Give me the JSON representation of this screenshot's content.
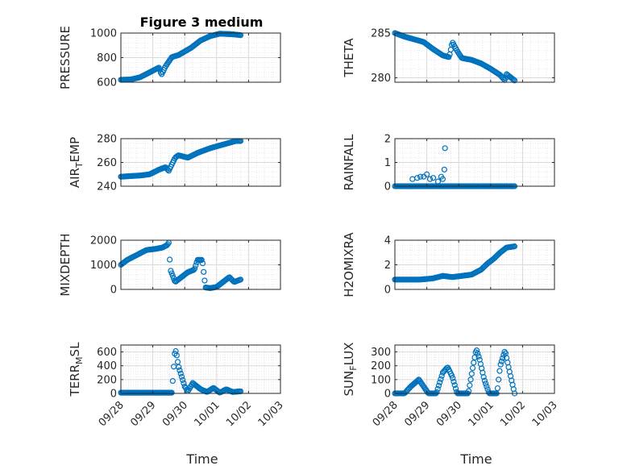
{
  "figure_title": "Figure 3 medium",
  "colors": {
    "marker": "#0072BD",
    "axes": "#262626",
    "grid": "#d9d9d9",
    "background": "#ffffff"
  },
  "chart_data": [
    {
      "type": "scatter",
      "marker": "circle-open",
      "grid": true,
      "title": "Figure 3 medium",
      "ylabel": "PRESSURE",
      "xlabel": "",
      "xlim": [
        "09/28",
        "10/03"
      ],
      "ylim": [
        600,
        1000
      ],
      "yticks": [
        "600",
        "800",
        "1000"
      ],
      "x_ticklabels": [
        "09/28",
        "09/29",
        "09/30",
        "10/01",
        "10/02",
        "10/03"
      ],
      "x_ticklabels_shown": false,
      "x_range_days": [
        0,
        3.75
      ],
      "y_keypoints": [
        [
          0,
          620
        ],
        [
          0.3,
          622
        ],
        [
          0.6,
          640
        ],
        [
          0.9,
          680
        ],
        [
          1.2,
          720
        ],
        [
          1.27,
          660
        ],
        [
          1.4,
          730
        ],
        [
          1.6,
          805
        ],
        [
          1.8,
          820
        ],
        [
          2.0,
          850
        ],
        [
          2.2,
          880
        ],
        [
          2.5,
          940
        ],
        [
          2.8,
          975
        ],
        [
          3.1,
          995
        ],
        [
          3.5,
          990
        ],
        [
          3.75,
          983
        ]
      ]
    },
    {
      "type": "scatter",
      "marker": "circle-open",
      "grid": true,
      "title": "",
      "ylabel": "THETA",
      "xlabel": "",
      "xlim": [
        "09/28",
        "10/03"
      ],
      "ylim": [
        279.5,
        285
      ],
      "yticks": [
        "280",
        "285"
      ],
      "x_ticklabels": [
        "09/28",
        "09/29",
        "09/30",
        "10/01",
        "10/02",
        "10/03"
      ],
      "x_ticklabels_shown": false,
      "x_range_days": [
        0,
        3.75
      ],
      "y_keypoints": [
        [
          0,
          285
        ],
        [
          0.3,
          284.6
        ],
        [
          0.6,
          284.3
        ],
        [
          0.9,
          284.0
        ],
        [
          1.2,
          283.2
        ],
        [
          1.5,
          282.5
        ],
        [
          1.7,
          282.3
        ],
        [
          1.8,
          284.0
        ],
        [
          1.95,
          283.0
        ],
        [
          2.1,
          282.2
        ],
        [
          2.4,
          282.0
        ],
        [
          2.7,
          281.6
        ],
        [
          3.0,
          281.0
        ],
        [
          3.3,
          280.3
        ],
        [
          3.45,
          279.7
        ],
        [
          3.5,
          280.4
        ],
        [
          3.75,
          279.7
        ]
      ]
    },
    {
      "type": "scatter",
      "marker": "circle-open",
      "grid": true,
      "title": "",
      "ylabel": "AIR_TEMP",
      "ylabel_subscript": "T",
      "xlabel": "",
      "xlim": [
        "09/28",
        "10/03"
      ],
      "ylim": [
        240,
        280
      ],
      "yticks": [
        "240",
        "260",
        "280"
      ],
      "x_ticklabels": [
        "09/28",
        "09/29",
        "09/30",
        "10/01",
        "10/02",
        "10/03"
      ],
      "x_ticklabels_shown": false,
      "x_range_days": [
        0,
        3.75
      ],
      "y_keypoints": [
        [
          0,
          248
        ],
        [
          0.3,
          248.5
        ],
        [
          0.6,
          249
        ],
        [
          0.9,
          250
        ],
        [
          1.2,
          254
        ],
        [
          1.4,
          256
        ],
        [
          1.5,
          253
        ],
        [
          1.7,
          264
        ],
        [
          1.8,
          266
        ],
        [
          2.1,
          264
        ],
        [
          2.4,
          268
        ],
        [
          2.8,
          272
        ],
        [
          3.2,
          275
        ],
        [
          3.6,
          278
        ],
        [
          3.75,
          278
        ]
      ]
    },
    {
      "type": "scatter",
      "marker": "circle-open",
      "grid": true,
      "title": "",
      "ylabel": "RAINFALL",
      "xlabel": "",
      "xlim": [
        "09/28",
        "10/03"
      ],
      "ylim": [
        0,
        2
      ],
      "yticks": [
        "0",
        "1",
        "2"
      ],
      "x_ticklabels": [
        "09/28",
        "09/29",
        "09/30",
        "10/01",
        "10/02",
        "10/03"
      ],
      "x_ticklabels_shown": false,
      "x_range_days": [
        0,
        3.75
      ],
      "y_keypoints": [
        [
          0,
          0
        ],
        [
          3.75,
          0
        ]
      ],
      "y_outliers": [
        [
          0.55,
          0.3
        ],
        [
          0.7,
          0.35
        ],
        [
          0.8,
          0.4
        ],
        [
          0.9,
          0.4
        ],
        [
          1.0,
          0.5
        ],
        [
          1.1,
          0.3
        ],
        [
          1.2,
          0.35
        ],
        [
          1.35,
          0.2
        ],
        [
          1.45,
          0.4
        ],
        [
          1.5,
          0.3
        ],
        [
          1.55,
          0.7
        ],
        [
          1.57,
          1.6
        ]
      ]
    },
    {
      "type": "scatter",
      "marker": "circle-open",
      "grid": true,
      "title": "",
      "ylabel": "MIXDEPTH",
      "xlabel": "",
      "xlim": [
        "09/28",
        "10/03"
      ],
      "ylim": [
        0,
        2000
      ],
      "yticks": [
        "0",
        "1000",
        "2000"
      ],
      "x_ticklabels": [
        "09/28",
        "09/29",
        "09/30",
        "10/01",
        "10/02",
        "10/03"
      ],
      "x_ticklabels_shown": false,
      "x_range_days": [
        0,
        3.75
      ],
      "y_keypoints": [
        [
          0,
          1000
        ],
        [
          0.2,
          1200
        ],
        [
          0.5,
          1400
        ],
        [
          0.8,
          1600
        ],
        [
          1.1,
          1650
        ],
        [
          1.3,
          1700
        ],
        [
          1.45,
          1800
        ],
        [
          1.5,
          1900
        ],
        [
          1.55,
          800
        ],
        [
          1.7,
          300
        ],
        [
          1.9,
          500
        ],
        [
          2.1,
          700
        ],
        [
          2.3,
          800
        ],
        [
          2.4,
          1200
        ],
        [
          2.55,
          1200
        ],
        [
          2.65,
          80
        ],
        [
          2.8,
          50
        ],
        [
          3.0,
          100
        ],
        [
          3.2,
          300
        ],
        [
          3.4,
          500
        ],
        [
          3.55,
          300
        ],
        [
          3.75,
          400
        ]
      ]
    },
    {
      "type": "scatter",
      "marker": "circle-open",
      "grid": true,
      "title": "",
      "ylabel": "H2OMIXRA",
      "xlabel": "",
      "xlim": [
        "09/28",
        "10/03"
      ],
      "ylim": [
        0,
        4
      ],
      "yticks": [
        "0",
        "2",
        "4"
      ],
      "x_ticklabels": [
        "09/28",
        "09/29",
        "09/30",
        "10/01",
        "10/02",
        "10/03"
      ],
      "x_ticklabels_shown": false,
      "x_range_days": [
        0,
        3.75
      ],
      "y_keypoints": [
        [
          0,
          0.8
        ],
        [
          0.4,
          0.8
        ],
        [
          0.8,
          0.8
        ],
        [
          1.2,
          0.9
        ],
        [
          1.5,
          1.1
        ],
        [
          1.8,
          1.0
        ],
        [
          2.1,
          1.1
        ],
        [
          2.4,
          1.2
        ],
        [
          2.7,
          1.6
        ],
        [
          2.9,
          2.1
        ],
        [
          3.1,
          2.5
        ],
        [
          3.3,
          3.0
        ],
        [
          3.5,
          3.4
        ],
        [
          3.75,
          3.5
        ]
      ]
    },
    {
      "type": "scatter",
      "marker": "circle-open",
      "grid": true,
      "title": "",
      "ylabel": "TERR_MSL",
      "ylabel_subscript": "M",
      "xlabel": "Time",
      "xlim": [
        "09/28",
        "10/03"
      ],
      "ylim": [
        0,
        700
      ],
      "yticks": [
        "0",
        "200",
        "400",
        "600"
      ],
      "x_ticklabels": [
        "09/28",
        "09/29",
        "09/30",
        "10/01",
        "10/02",
        "10/03"
      ],
      "x_ticklabels_shown": true,
      "x_range_days": [
        0,
        3.75
      ],
      "y_keypoints": [
        [
          0,
          10
        ],
        [
          1.6,
          10
        ],
        [
          1.65,
          350
        ],
        [
          1.7,
          650
        ],
        [
          1.75,
          550
        ],
        [
          1.8,
          400
        ],
        [
          1.9,
          250
        ],
        [
          2.0,
          100
        ],
        [
          2.1,
          30
        ],
        [
          2.25,
          150
        ],
        [
          2.5,
          60
        ],
        [
          2.7,
          20
        ],
        [
          2.9,
          80
        ],
        [
          3.1,
          10
        ],
        [
          3.3,
          60
        ],
        [
          3.5,
          20
        ],
        [
          3.75,
          30
        ]
      ]
    },
    {
      "type": "scatter",
      "marker": "circle-open",
      "grid": true,
      "title": "",
      "ylabel": "SUN_FLUX",
      "ylabel_subscript": "F",
      "xlabel": "Time",
      "xlim": [
        "09/28",
        "10/03"
      ],
      "ylim": [
        0,
        350
      ],
      "yticks": [
        "0",
        "100",
        "200",
        "300"
      ],
      "x_ticklabels": [
        "09/28",
        "09/29",
        "09/30",
        "10/01",
        "10/02",
        "10/03"
      ],
      "x_ticklabels_shown": true,
      "x_range_days": [
        0,
        3.75
      ],
      "y_keypoints": [
        [
          0,
          0
        ],
        [
          0.3,
          0
        ],
        [
          0.5,
          50
        ],
        [
          0.75,
          100
        ],
        [
          0.9,
          50
        ],
        [
          1.05,
          0
        ],
        [
          1.3,
          0
        ],
        [
          1.5,
          150
        ],
        [
          1.65,
          190
        ],
        [
          1.8,
          120
        ],
        [
          1.95,
          0
        ],
        [
          2.3,
          0
        ],
        [
          2.45,
          200
        ],
        [
          2.55,
          320
        ],
        [
          2.65,
          250
        ],
        [
          2.8,
          100
        ],
        [
          2.95,
          0
        ],
        [
          3.2,
          0
        ],
        [
          3.3,
          200
        ],
        [
          3.45,
          310
        ],
        [
          3.6,
          150
        ],
        [
          3.7,
          50
        ],
        [
          3.75,
          0
        ]
      ]
    }
  ]
}
